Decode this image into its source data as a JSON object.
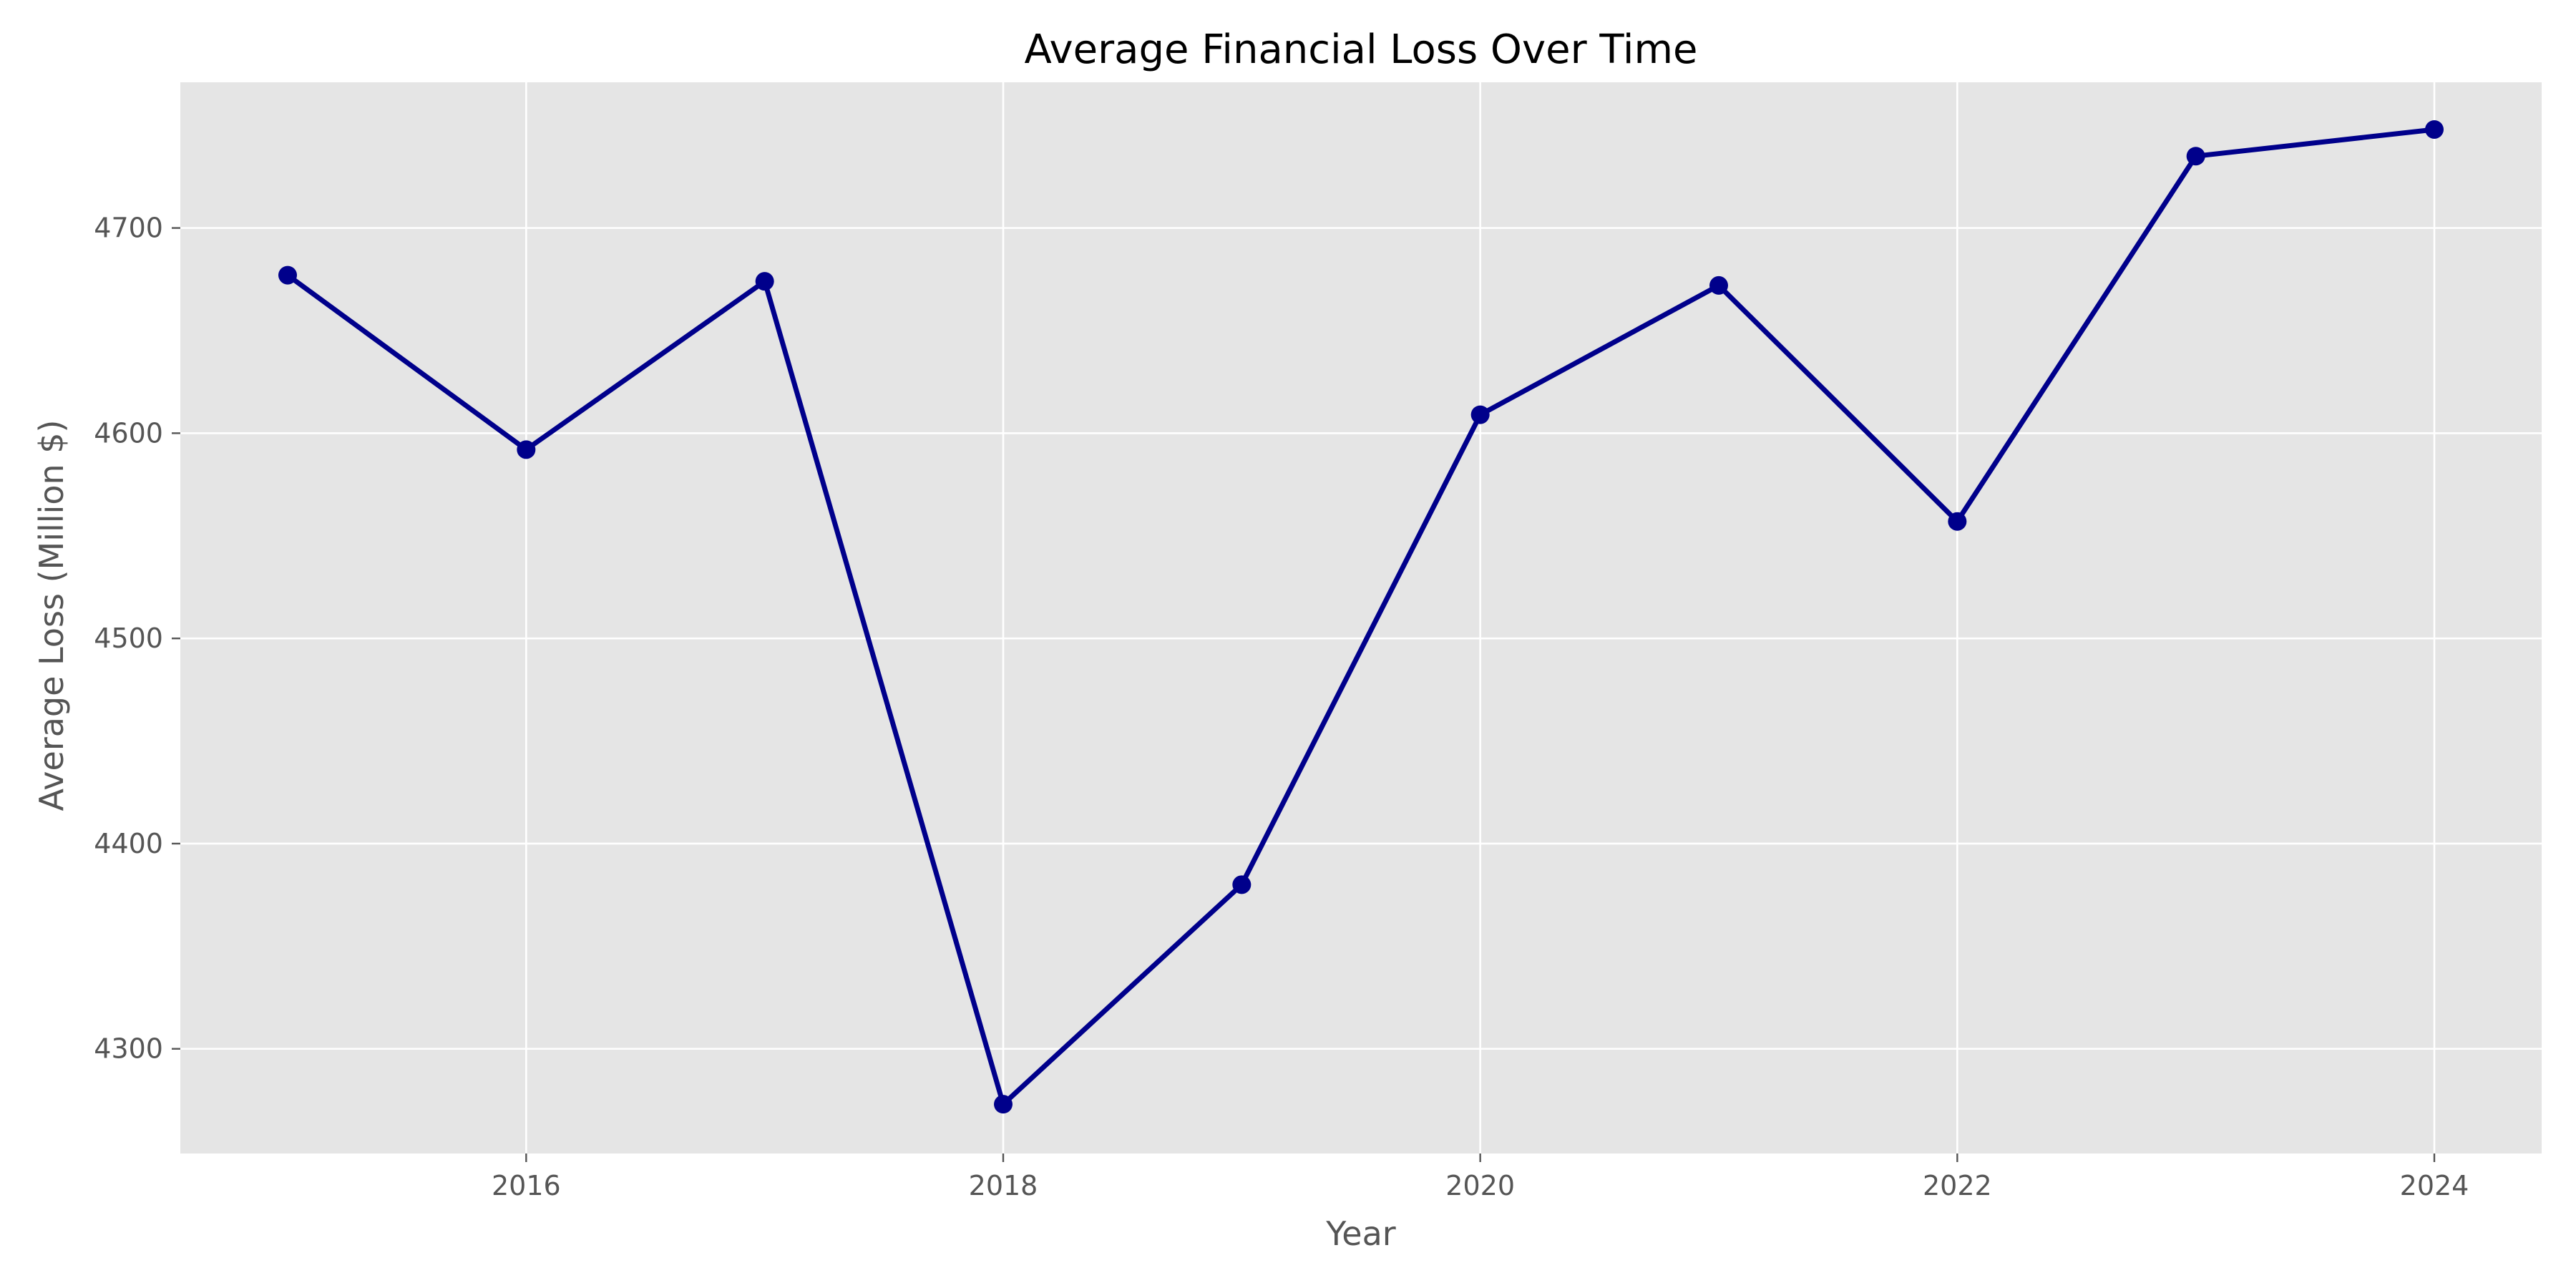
{
  "chart_data": {
    "type": "line",
    "title": "Average Financial Loss Over Time",
    "xlabel": "Year",
    "ylabel": "Average Loss (Million $)",
    "x": [
      2015,
      2016,
      2017,
      2018,
      2019,
      2020,
      2021,
      2022,
      2023,
      2024
    ],
    "series": [
      {
        "values": [
          4677,
          4592,
          4674,
          4273,
          4380,
          4609,
          4672,
          4557,
          4735,
          4748
        ]
      }
    ],
    "xlim": [
      2014.55,
      2024.45
    ],
    "ylim": [
      4249,
      4771
    ],
    "xticks": [
      2016,
      2018,
      2020,
      2022,
      2024
    ],
    "yticks": [
      4300,
      4400,
      4500,
      4600,
      4700
    ],
    "grid": true,
    "legend": "none",
    "colors": {
      "line": "#00008b",
      "plot_background": "#e5e5e5",
      "grid": "#ffffff",
      "text": "#555555"
    }
  }
}
